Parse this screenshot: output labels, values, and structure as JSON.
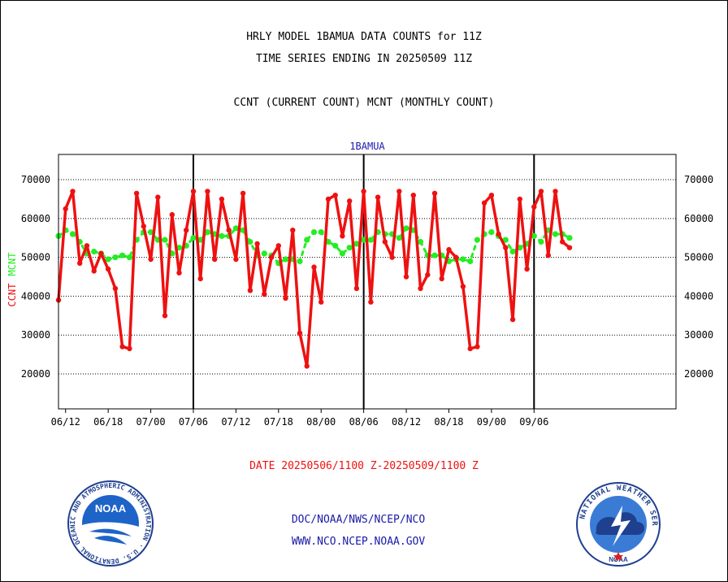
{
  "header": {
    "title_line1": "HRLY MODEL 1BAMUA DATA COUNTS for 11Z",
    "title_line2": "TIME SERIES ENDING IN 20250509 11Z",
    "subtitle": "CCNT (CURRENT COUNT) MCNT (MONTHLY COUNT)"
  },
  "colors": {
    "ccnt": "#ee1111",
    "mcnt": "#22ee22",
    "panel_title": "#1a1aa8",
    "date_range": "#ee1111",
    "footer": "#1a1aa8"
  },
  "chart_data": {
    "type": "line",
    "panel_title": "1BAMUA",
    "ylabel_ccnt": "CCNT",
    "ylabel_mcnt": "MCNT",
    "ylim": [
      11000,
      76500
    ],
    "yticks": [
      20000,
      30000,
      40000,
      50000,
      60000,
      70000
    ],
    "grid": true,
    "x_index_range": [
      0,
      87
    ],
    "xtick_labels": [
      "06/12",
      "06/18",
      "07/00",
      "07/06",
      "07/12",
      "07/18",
      "08/00",
      "08/06",
      "08/12",
      "08/18",
      "09/00",
      "09/06"
    ],
    "xtick_index": [
      1,
      7,
      13,
      19,
      25,
      31,
      37,
      43,
      49,
      55,
      61,
      67
    ],
    "day_boundaries_index": [
      19,
      43,
      67
    ],
    "series": [
      {
        "name": "CCNT",
        "values": [
          39000,
          62500,
          67000,
          48500,
          53000,
          46500,
          51000,
          47000,
          42000,
          27000,
          26500,
          66500,
          58000,
          49500,
          65500,
          35000,
          61000,
          46000,
          57000,
          67000,
          44500,
          67000,
          49500,
          65000,
          57000,
          49500,
          66500,
          41500,
          53500,
          40500,
          50000,
          53000,
          39500,
          57000,
          30500,
          22000,
          47500,
          38500,
          65000,
          66000,
          55500,
          64500,
          42000,
          67000,
          38500,
          65500,
          54000,
          50000,
          67000,
          45000,
          66000,
          42000,
          45500,
          66500,
          44500,
          52000,
          50000,
          42500,
          26500,
          27000,
          64000,
          66000,
          56000,
          52500,
          34000,
          65000,
          47000,
          63000,
          67000,
          50500,
          67000,
          54000,
          52500
        ]
      },
      {
        "name": "MCNT",
        "values": [
          55500,
          57000,
          56000,
          54000,
          51000,
          51500,
          51000,
          49500,
          50000,
          50500,
          50000,
          54500,
          56500,
          56500,
          54500,
          54500,
          51000,
          52500,
          53000,
          55000,
          54500,
          56500,
          56000,
          55500,
          55500,
          57500,
          57000,
          54000,
          50500,
          51000,
          50500,
          48500,
          49500,
          49500,
          49000,
          54500,
          56500,
          56500,
          54000,
          53000,
          51000,
          52500,
          53500,
          54500,
          54500,
          56500,
          56000,
          56000,
          55000,
          57500,
          57000,
          54000,
          50500,
          50500,
          50500,
          49000,
          49500,
          49500,
          49000,
          54500,
          56000,
          56500,
          55500,
          54500,
          51500,
          52500,
          53500,
          55500,
          54000,
          57000,
          56000,
          56000,
          55000
        ]
      }
    ]
  },
  "date_range_text": "DATE 20250506/1100 Z-20250509/1100 Z",
  "footer": {
    "line1": "DOC/NOAA/NWS/NCEP/NCO",
    "line2": "WWW.NCO.NCEP.NOAA.GOV"
  },
  "logos": {
    "noaa_ring_text": "NATIONAL OCEANIC AND ATMOSPHERIC ADMINISTRATION · U.S. DEPARTMENT OF COMMERCE ·",
    "noaa_center_text": "NOAA",
    "nws_ring_text": "NATIONAL WEATHER SERVICE",
    "nws_bottom_text": "NOAA"
  }
}
